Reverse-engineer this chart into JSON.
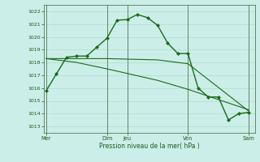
{
  "background_color": "#cceee8",
  "grid_color": "#aaddcc",
  "line_color": "#1a6b1a",
  "marker_color": "#1a6b1a",
  "xlabel": "Pression niveau de la mer( hPa )",
  "ylim": [
    1012.5,
    1022.5
  ],
  "yticks": [
    1013,
    1014,
    1015,
    1016,
    1017,
    1018,
    1019,
    1020,
    1021,
    1022
  ],
  "xtick_labels": [
    "Mer",
    "Dim",
    "Jeu",
    "Ven",
    "Sam"
  ],
  "xtick_positions": [
    0,
    3,
    4,
    7,
    10
  ],
  "vlines": [
    0,
    3.0,
    4.0,
    7.0,
    10.0
  ],
  "series1_x": [
    0,
    0.5,
    1.0,
    1.5,
    2.0,
    2.5,
    3.0,
    3.5,
    4.0,
    4.5,
    5.0,
    5.5,
    6.0,
    6.5,
    7.0,
    7.5,
    8.0,
    8.5,
    9.0,
    9.5,
    10.0
  ],
  "series1_y": [
    1015.8,
    1017.1,
    1018.4,
    1018.5,
    1018.5,
    1019.2,
    1019.9,
    1021.3,
    1021.35,
    1021.75,
    1021.5,
    1020.9,
    1019.5,
    1018.7,
    1018.7,
    1016.0,
    1015.3,
    1015.3,
    1013.5,
    1014.0,
    1014.1
  ],
  "series2_x": [
    0,
    1.5,
    3.0,
    5.5,
    7.0,
    10.0
  ],
  "series2_y": [
    1018.3,
    1018.3,
    1018.3,
    1018.2,
    1017.9,
    1014.2
  ],
  "series3_x": [
    0,
    1.5,
    3.0,
    5.5,
    7.0,
    10.0
  ],
  "series3_y": [
    1018.3,
    1018.0,
    1017.5,
    1016.6,
    1015.9,
    1014.3
  ]
}
